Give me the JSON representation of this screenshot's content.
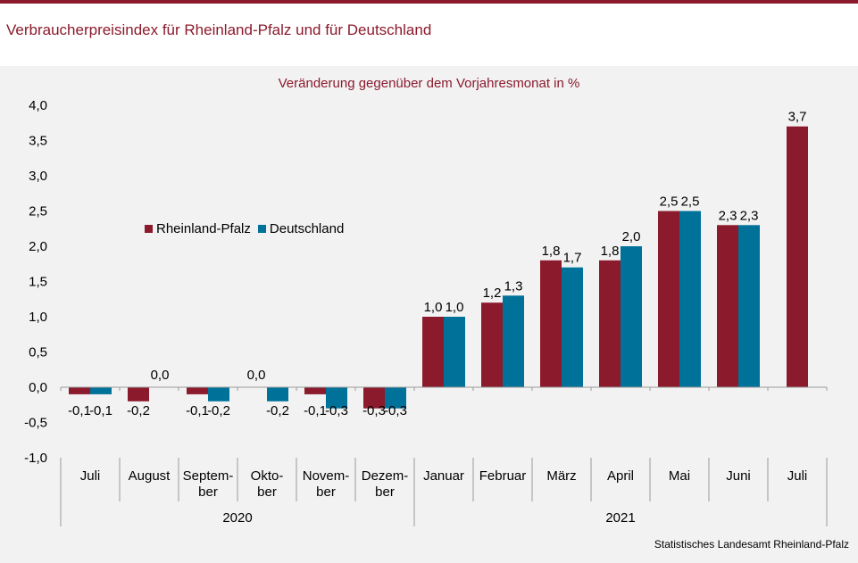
{
  "header": {
    "title": "Verbraucherpreisindex für Rheinland-Pfalz und für Deutschland"
  },
  "source": "Statistisches Landesamt Rheinland-Pfalz",
  "colors": {
    "accent": "#8b1a2c",
    "rheinland_pfalz": "#8b1a2c",
    "deutschland": "#00729a",
    "panel": "#f2f2f2"
  },
  "chart_data": {
    "type": "bar",
    "title": "Veränderung gegenüber dem Vorjahresmonat in %",
    "xlabel": "",
    "ylabel": "",
    "ylim": [
      -1.0,
      4.0
    ],
    "yticks": [
      "-1,0",
      "-0,5",
      "0,0",
      "0,5",
      "1,0",
      "1,5",
      "2,0",
      "2,5",
      "3,0",
      "3,5",
      "4,0"
    ],
    "categories": [
      [
        "Juli"
      ],
      [
        "August"
      ],
      [
        "Septem-",
        "ber"
      ],
      [
        "Okto-",
        "ber"
      ],
      [
        "Novem-",
        "ber"
      ],
      [
        "Dezem-",
        "ber"
      ],
      [
        "Januar"
      ],
      [
        "Februar"
      ],
      [
        "März"
      ],
      [
        "April"
      ],
      [
        "Mai"
      ],
      [
        "Juni"
      ],
      [
        "Juli"
      ]
    ],
    "year_groups": [
      {
        "label": "2020",
        "count": 6
      },
      {
        "label": "2021",
        "count": 7
      }
    ],
    "series": [
      {
        "name": "Rheinland-Pfalz",
        "values": [
          -0.1,
          -0.2,
          -0.1,
          0.0,
          -0.1,
          -0.3,
          1.0,
          1.2,
          1.8,
          1.8,
          2.5,
          2.3,
          3.7
        ],
        "labels": [
          "-0,1",
          "-0,2",
          "-0,1",
          "0,0",
          "-0,1",
          "-0,3",
          "1,0",
          "1,2",
          "1,8",
          "1,8",
          "2,5",
          "2,3",
          "3,7"
        ]
      },
      {
        "name": "Deutschland",
        "values": [
          -0.1,
          0.0,
          -0.2,
          -0.2,
          -0.3,
          -0.3,
          1.0,
          1.3,
          1.7,
          2.0,
          2.5,
          2.3,
          null
        ],
        "labels": [
          "-0,1",
          "0,0",
          "-0,2",
          "-0,2",
          "-0,3",
          "-0,3",
          "1,0",
          "1,3",
          "1,7",
          "2,0",
          "2,5",
          "2,3",
          null
        ]
      }
    ],
    "legend": "upper-left",
    "grid": false
  }
}
